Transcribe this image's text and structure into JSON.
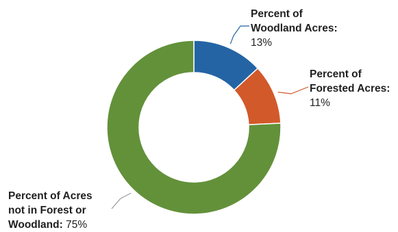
{
  "chart_data": {
    "type": "pie",
    "variant": "donut",
    "slices": [
      {
        "label_line1": "Percent of",
        "label_line2": "Woodland Acres",
        "label_suffix": ":",
        "value_text": "13%",
        "value": 13,
        "color": "#2464a4"
      },
      {
        "label_line1": "Percent of",
        "label_line2": "Forested Acres",
        "label_suffix": ":",
        "value_text": "11%",
        "value": 11,
        "color": "#d2592a"
      },
      {
        "label_line1": "Percent of Acres",
        "label_line2": "not in Forest or",
        "label_line3": "Woodland",
        "label_suffix": ":",
        "value_text": " 75%",
        "value": 75,
        "color": "#63913a"
      }
    ],
    "leader_color": "#9a9a9a"
  }
}
